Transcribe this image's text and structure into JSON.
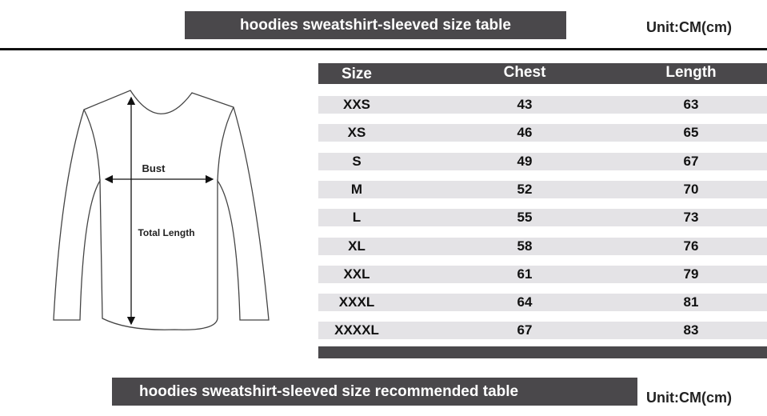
{
  "top_banner": "hoodies sweatshirt-sleeved size  table",
  "unit_top": "Unit:CM(cm)",
  "diagram": {
    "bust_label": "Bust",
    "length_label": "Total Length"
  },
  "table": {
    "headers": [
      "Size",
      "Chest",
      "Length"
    ],
    "rows": [
      [
        "XXS",
        "43",
        "63"
      ],
      [
        "XS",
        "46",
        "65"
      ],
      [
        "S",
        "49",
        "67"
      ],
      [
        "M",
        "52",
        "70"
      ],
      [
        "L",
        "55",
        "73"
      ],
      [
        "XL",
        "58",
        "76"
      ],
      [
        "XXL",
        "61",
        "79"
      ],
      [
        "XXXL",
        "64",
        "81"
      ],
      [
        "XXXXL",
        "67",
        "83"
      ]
    ]
  },
  "bottom_banner": "hoodies sweatshirt-sleeved size recommended table",
  "unit_bottom": "Unit:CM(cm)",
  "colors": {
    "banner": "#4a484b",
    "row": "#e4e3e6"
  }
}
